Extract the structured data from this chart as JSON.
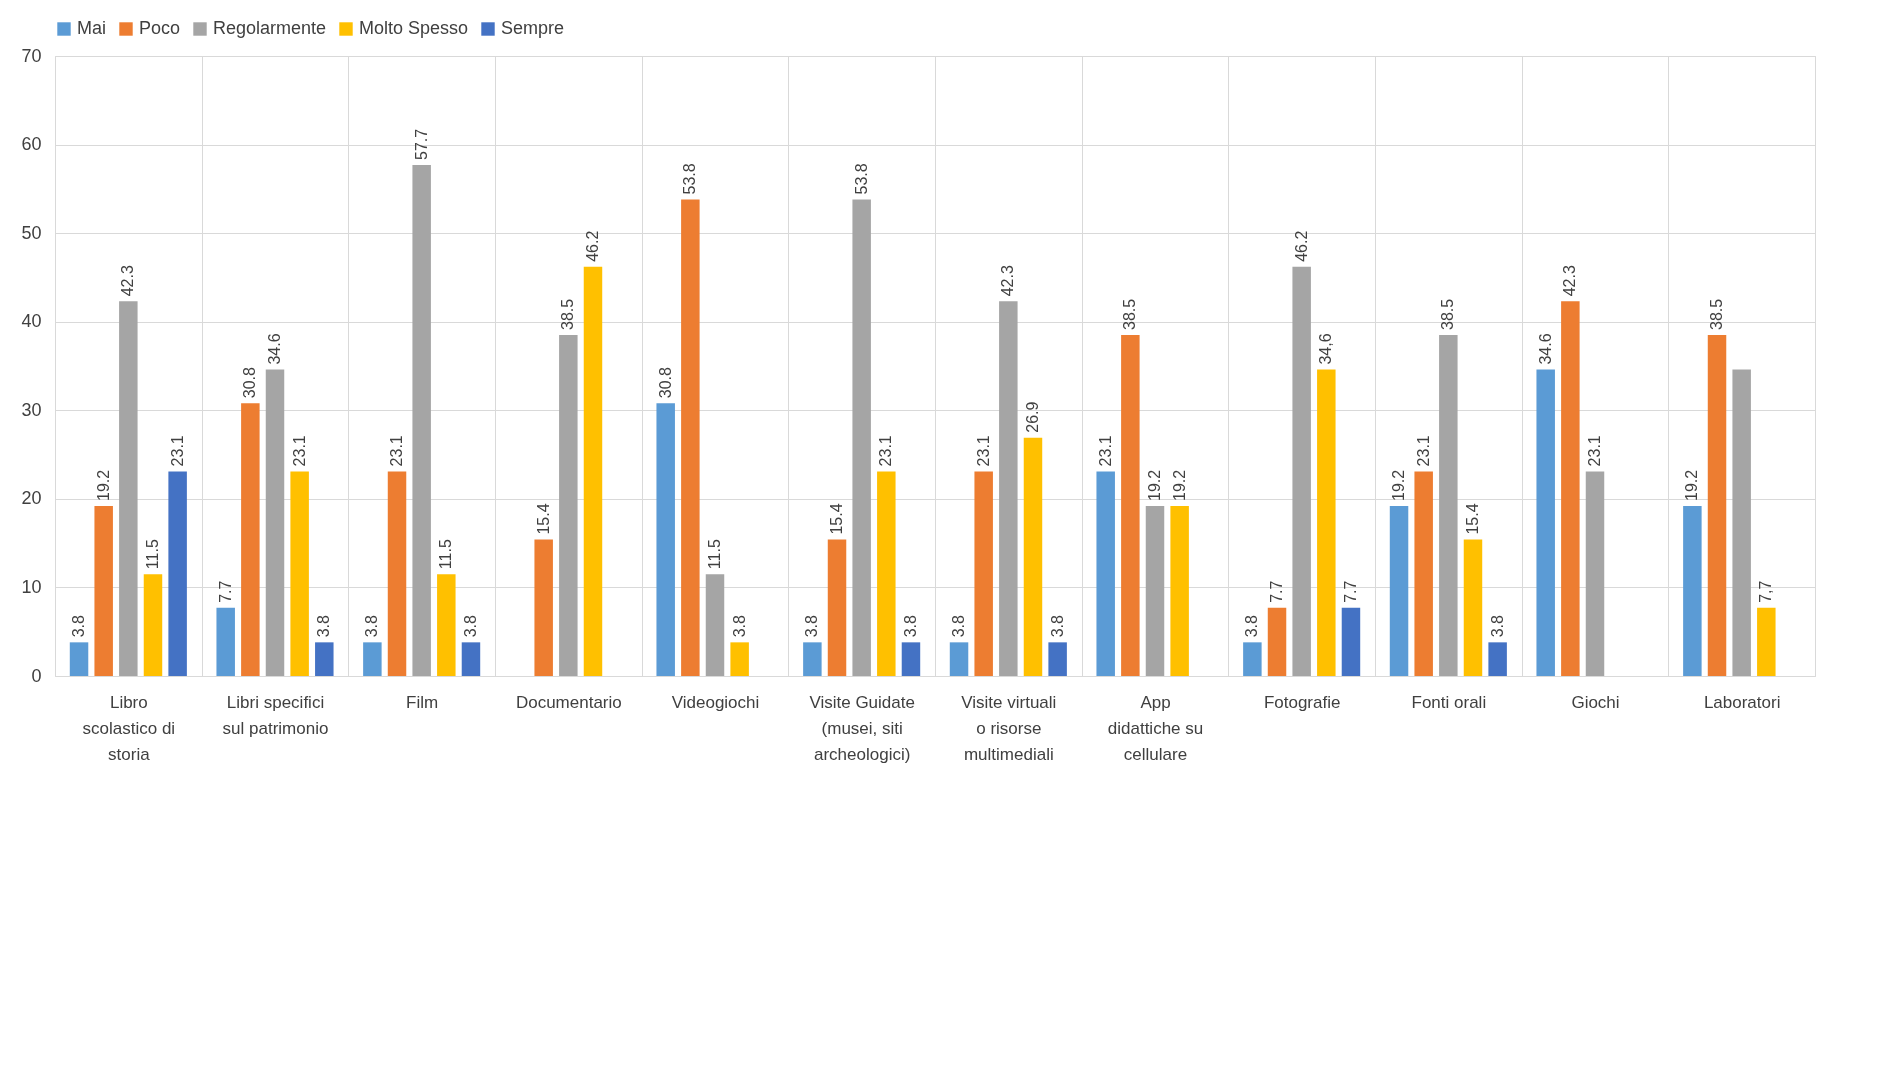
{
  "chart_data": {
    "type": "bar",
    "categories": [
      "Libro\n\nscolastico di\nstoria",
      "Libri specifici\n\nsul patrimonio",
      "Film",
      "Documentario",
      "Videogiochi",
      "Visite Guidate\n\n(musei, siti\narcheologici)",
      "Visite virtuali\n\no risorse\nmultimediali",
      "App\n\ndidattiche su\ncellulare",
      "Fotografie",
      "Fonti orali",
      "Giochi",
      "Laboratori"
    ],
    "series": [
      {
        "name": "Mai",
        "color": "#5b9bd5",
        "values": [
          3.8,
          7.7,
          3.8,
          null,
          30.8,
          3.8,
          3.8,
          23.1,
          3.8,
          19.2,
          34.6,
          19.2
        ],
        "value_labels": [
          "3.8",
          "7.7",
          "3.8",
          null,
          "30.8",
          "3.8",
          "3.8",
          "23.1",
          "3.8",
          "19.2",
          "34.6",
          "19.2"
        ]
      },
      {
        "name": "Poco",
        "color": "#ed7d31",
        "values": [
          19.2,
          30.8,
          23.1,
          15.4,
          53.8,
          15.4,
          23.1,
          38.5,
          7.7,
          23.1,
          42.3,
          38.5
        ],
        "value_labels": [
          "19.2",
          "30.8",
          "23.1",
          "15.4",
          "53.8",
          "15.4",
          "23.1",
          "38.5",
          "7.7",
          "23.1",
          "42.3",
          "38.5"
        ]
      },
      {
        "name": "Regolarmente",
        "color": "#a5a5a5",
        "values": [
          42.3,
          34.6,
          57.7,
          38.5,
          11.5,
          53.8,
          42.3,
          19.2,
          46.2,
          38.5,
          23.1,
          34.6
        ],
        "value_labels": [
          "42.3",
          "34.6",
          "57.7",
          "38.5",
          "11.5",
          "53.8",
          "42.3",
          "19.2",
          "46.2",
          "38.5",
          "23.1",
          null
        ]
      },
      {
        "name": "Molto Spesso",
        "color": "#ffc000",
        "values": [
          11.5,
          23.1,
          11.5,
          46.2,
          3.8,
          23.1,
          26.9,
          19.2,
          34.6,
          15.4,
          null,
          7.7
        ],
        "value_labels": [
          "11.5",
          "23.1",
          "11.5",
          "46.2",
          "3.8",
          "23.1",
          "26.9",
          "19.2",
          "34,6",
          "15.4",
          null,
          "7,7"
        ]
      },
      {
        "name": "Sempre",
        "color": "#4472c4",
        "values": [
          23.1,
          3.8,
          3.8,
          null,
          null,
          3.8,
          3.8,
          null,
          7.7,
          3.8,
          null,
          null
        ],
        "value_labels": [
          "23.1",
          "3.8",
          "3.8",
          null,
          null,
          "3.8",
          "3.8",
          null,
          "7.7",
          "3.8",
          null,
          null
        ]
      }
    ],
    "ylim": [
      0,
      70
    ],
    "yticks": [
      0,
      10,
      20,
      30,
      40,
      50,
      60,
      70
    ],
    "grid": true,
    "legend": "top"
  }
}
